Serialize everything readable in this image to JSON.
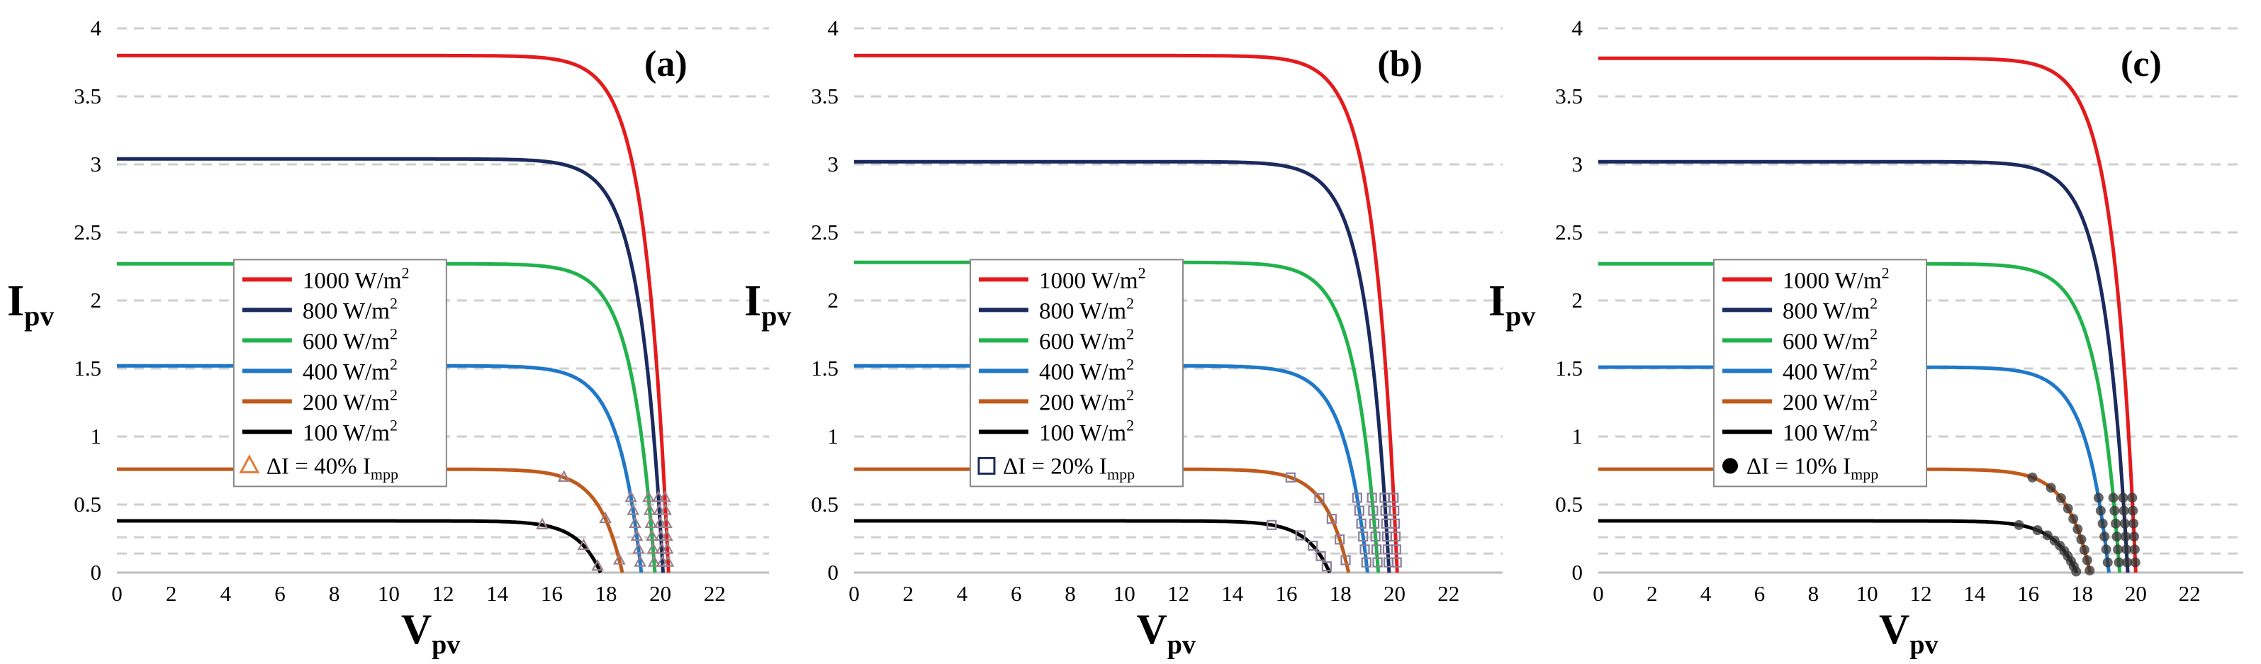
{
  "chart_data": [
    {
      "type": "line",
      "panel_label": "(a)",
      "xlabel": "V",
      "xlabel_sub": "pv",
      "ylabel": "I",
      "ylabel_sub": "pv",
      "xlim": [
        0,
        24
      ],
      "ylim": [
        0,
        4
      ],
      "xticks": [
        "0",
        "2",
        "4",
        "6",
        "8",
        "10",
        "12",
        "14",
        "16",
        "18",
        "20",
        "22"
      ],
      "yticks": [
        "0",
        "0.5",
        "1",
        "1.5",
        "2",
        "2.5",
        "3",
        "3.5",
        "4"
      ],
      "grid": "horizontal dashed",
      "legend_position": "center",
      "series": [
        {
          "name": "1000 W/m",
          "sup": "2",
          "color": "#e41a1c",
          "isc": 3.8,
          "voc": 20.3
        },
        {
          "name": "800 W/m",
          "sup": "2",
          "color": "#1b2a5e",
          "isc": 3.04,
          "voc": 20.1
        },
        {
          "name": "600 W/m",
          "sup": "2",
          "color": "#22b24c",
          "isc": 2.27,
          "voc": 19.8
        },
        {
          "name": "400 W/m",
          "sup": "2",
          "color": "#1f78c8",
          "isc": 1.52,
          "voc": 19.3
        },
        {
          "name": "200 W/m",
          "sup": "2",
          "color": "#c05a1c",
          "isc": 0.76,
          "voc": 18.6
        },
        {
          "name": "100 W/m",
          "sup": "2",
          "color": "#000000",
          "isc": 0.38,
          "voc": 17.8
        }
      ],
      "marker": {
        "symbol": "triangle",
        "color": "#e07b39",
        "label_prefix": "ΔI = 40% I",
        "label_sub": "mpp",
        "step_fraction": 0.4
      }
    },
    {
      "type": "line",
      "panel_label": "(b)",
      "xlabel": "V",
      "xlabel_sub": "pv",
      "ylabel": "I",
      "ylabel_sub": "pv",
      "xlim": [
        0,
        24
      ],
      "ylim": [
        0,
        4
      ],
      "xticks": [
        "0",
        "2",
        "4",
        "6",
        "8",
        "10",
        "12",
        "14",
        "16",
        "18",
        "20",
        "22"
      ],
      "yticks": [
        "0",
        "0.5",
        "1",
        "1.5",
        "2",
        "2.5",
        "3",
        "3.5",
        "4"
      ],
      "grid": "horizontal dashed",
      "legend_position": "center",
      "series": [
        {
          "name": "1000 W/m",
          "sup": "2",
          "color": "#e41a1c",
          "isc": 3.8,
          "voc": 20.1
        },
        {
          "name": "800 W/m",
          "sup": "2",
          "color": "#1b2a5e",
          "isc": 3.02,
          "voc": 19.8
        },
        {
          "name": "600 W/m",
          "sup": "2",
          "color": "#22b24c",
          "isc": 2.28,
          "voc": 19.4
        },
        {
          "name": "400 W/m",
          "sup": "2",
          "color": "#1f78c8",
          "isc": 1.52,
          "voc": 19.0
        },
        {
          "name": "200 W/m",
          "sup": "2",
          "color": "#c05a1c",
          "isc": 0.76,
          "voc": 18.3
        },
        {
          "name": "100 W/m",
          "sup": "2",
          "color": "#000000",
          "isc": 0.38,
          "voc": 17.6
        }
      ],
      "marker": {
        "symbol": "square",
        "color": "#1b2a5e",
        "label_prefix": "ΔI = 20% I",
        "label_sub": "mpp",
        "step_fraction": 0.2
      }
    },
    {
      "type": "line",
      "panel_label": "(c)",
      "xlabel": "V",
      "xlabel_sub": "pv",
      "ylabel": "I",
      "ylabel_sub": "pv",
      "xlim": [
        0,
        24
      ],
      "ylim": [
        0,
        4
      ],
      "xticks": [
        "0",
        "2",
        "4",
        "6",
        "8",
        "10",
        "12",
        "14",
        "16",
        "18",
        "20",
        "22"
      ],
      "yticks": [
        "0",
        "0.5",
        "1",
        "1.5",
        "2",
        "2.5",
        "3",
        "3.5",
        "4"
      ],
      "grid": "horizontal dashed",
      "legend_position": "center",
      "series": [
        {
          "name": "1000 W/m",
          "sup": "2",
          "color": "#e41a1c",
          "isc": 3.78,
          "voc": 20.0
        },
        {
          "name": "800 W/m",
          "sup": "2",
          "color": "#1b2a5e",
          "isc": 3.02,
          "voc": 19.7
        },
        {
          "name": "600 W/m",
          "sup": "2",
          "color": "#22b24c",
          "isc": 2.27,
          "voc": 19.4
        },
        {
          "name": "400 W/m",
          "sup": "2",
          "color": "#1f78c8",
          "isc": 1.51,
          "voc": 19.0
        },
        {
          "name": "200 W/m",
          "sup": "2",
          "color": "#c05a1c",
          "isc": 0.76,
          "voc": 18.3
        },
        {
          "name": "100 W/m",
          "sup": "2",
          "color": "#000000",
          "isc": 0.38,
          "voc": 17.8
        }
      ],
      "marker": {
        "symbol": "dot",
        "color": "#000000",
        "label_prefix": "ΔI = 10% I",
        "label_sub": "mpp",
        "step_fraction": 0.1
      }
    }
  ]
}
